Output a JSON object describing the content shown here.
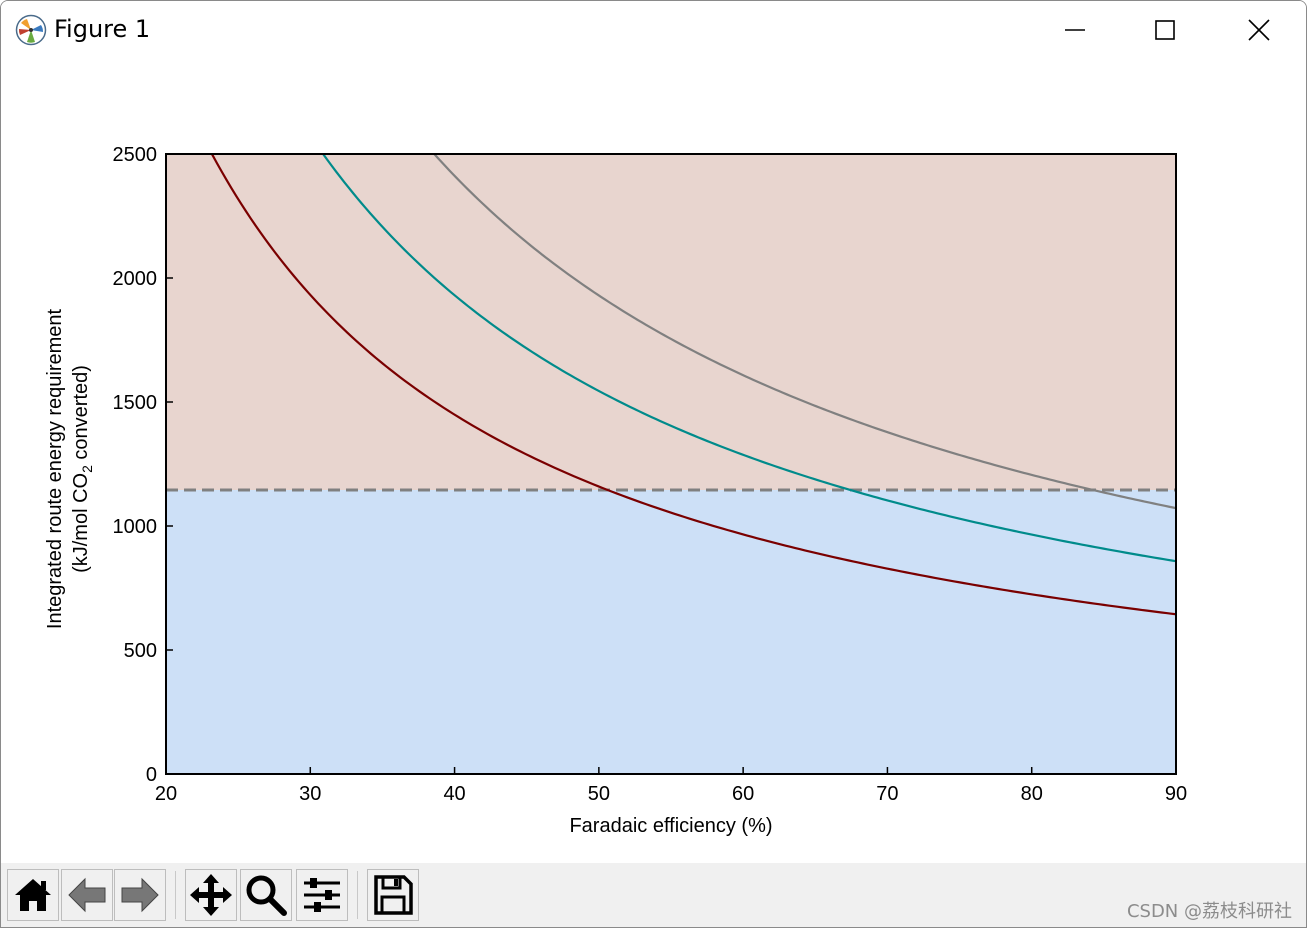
{
  "window": {
    "title": "Figure 1",
    "minimize_icon": "minimize-icon",
    "maximize_icon": "maximize-icon",
    "close_icon": "close-icon"
  },
  "toolbar": {
    "buttons": [
      "home-icon",
      "back-arrow-icon",
      "forward-arrow-icon",
      "pan-icon",
      "zoom-magnifier-icon",
      "configure-subplots-icon",
      "save-icon"
    ]
  },
  "watermark": "CSDN @荔枝科研社",
  "colors": {
    "upper_region": "#e8d5cf",
    "lower_region": "#cde0f7",
    "series_red": "#7a0000",
    "series_teal": "#008b8b",
    "series_gray": "#808080",
    "threshold_line": "#808080"
  },
  "chart_data": {
    "type": "line",
    "xlabel": "Faradaic efficiency (%)",
    "ylabel_line1": "Integrated route energy requirement",
    "ylabel_line2_pre": "(kJ/mol CO",
    "ylabel_line2_sub": "2",
    "ylabel_line2_post": " converted)",
    "xlim": [
      20,
      90
    ],
    "ylim": [
      0,
      2500
    ],
    "xticks": [
      "20",
      "30",
      "40",
      "50",
      "60",
      "70",
      "80",
      "90"
    ],
    "yticks": [
      "0",
      "500",
      "1000",
      "1500",
      "2000",
      "2500"
    ],
    "grid": false,
    "threshold_y": 1145,
    "shaded_regions": [
      {
        "from": 1145,
        "to": 2500,
        "color": "#e8d5cf"
      },
      {
        "from": 0,
        "to": 1145,
        "color": "#cde0f7"
      }
    ],
    "series": [
      {
        "color": "#7a0000",
        "x": [
          23.2,
          25,
          30,
          35,
          40,
          45,
          50,
          55,
          60,
          65,
          70,
          75,
          80,
          85,
          90
        ],
        "values": [
          2500,
          2320,
          1933,
          1657,
          1450,
          1289,
          1160,
          1055,
          967,
          892,
          829,
          773,
          725,
          682,
          644
        ]
      },
      {
        "color": "#008b8b",
        "x": [
          30.9,
          35,
          40,
          45,
          50,
          55,
          60,
          65,
          70,
          75,
          80,
          85,
          90
        ],
        "values": [
          2500,
          2206,
          1930,
          1716,
          1544,
          1404,
          1287,
          1188,
          1103,
          1029,
          965,
          908,
          858
        ]
      },
      {
        "color": "#808080",
        "x": [
          38.6,
          40,
          45,
          50,
          55,
          60,
          65,
          70,
          75,
          80,
          85,
          90
        ],
        "values": [
          2500,
          2412,
          2144,
          1930,
          1754,
          1608,
          1484,
          1378,
          1286,
          1206,
          1135,
          1072
        ]
      }
    ]
  }
}
